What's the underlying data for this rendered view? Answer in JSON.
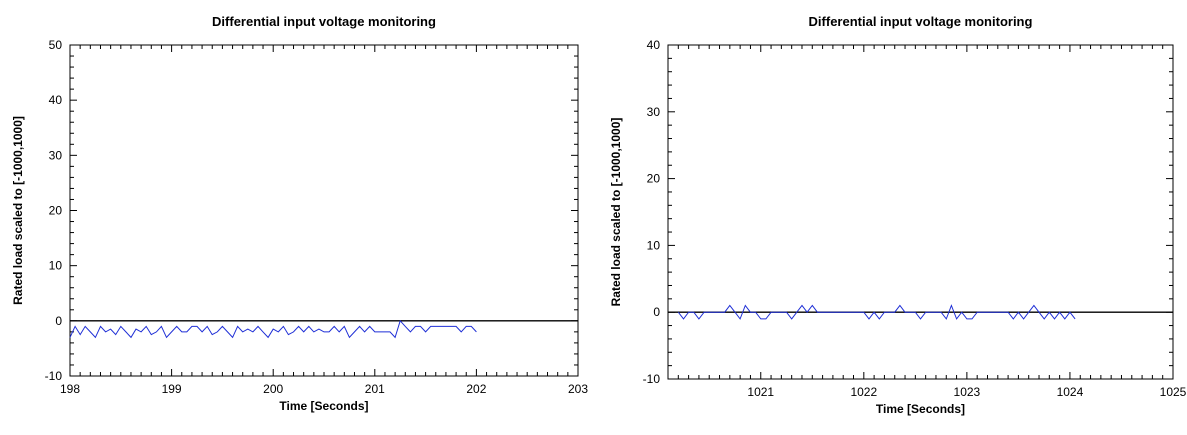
{
  "chart_data": [
    {
      "type": "line",
      "title": "Differential input voltage monitoring",
      "xlabel": "Time [Seconds]",
      "ylabel": "Rated load scaled to [-1000,1000]",
      "xlim": [
        198,
        203
      ],
      "ylim": [
        -10,
        50
      ],
      "xticks": [
        "198",
        "199",
        "200",
        "201",
        "202",
        "203"
      ],
      "yticks": [
        "-10",
        "0",
        "10",
        "20",
        "30",
        "40",
        "50"
      ],
      "zero_line": 0,
      "series_color": "#1f2fd6",
      "series": [
        {
          "x": [
            198.0,
            198.05,
            198.1,
            198.15,
            198.2,
            198.25,
            198.3,
            198.35,
            198.4,
            198.45,
            198.5,
            198.55,
            198.6,
            198.65,
            198.7,
            198.75,
            198.8,
            198.85,
            198.9,
            198.95,
            199.0,
            199.05,
            199.1,
            199.15,
            199.2,
            199.25,
            199.3,
            199.35,
            199.4,
            199.45,
            199.5,
            199.55,
            199.6,
            199.65,
            199.7,
            199.75,
            199.8,
            199.85,
            199.9,
            199.95,
            200.0,
            200.05,
            200.1,
            200.15,
            200.2,
            200.25,
            200.3,
            200.35,
            200.4,
            200.45,
            200.5,
            200.55,
            200.6,
            200.65,
            200.7,
            200.75,
            200.8,
            200.85,
            200.9,
            200.95,
            201.0,
            201.05,
            201.1,
            201.15,
            201.2,
            201.25,
            201.3,
            201.35,
            201.4,
            201.45,
            201.5,
            201.55,
            201.6,
            201.65,
            201.7,
            201.75,
            201.8,
            201.85,
            201.9,
            201.95,
            202.0
          ],
          "y": [
            -3,
            -1,
            -2.5,
            -1,
            -2,
            -3,
            -1,
            -2,
            -1.5,
            -2.5,
            -1,
            -2,
            -3,
            -1.5,
            -2,
            -1,
            -2.5,
            -2,
            -1,
            -3,
            -2,
            -1,
            -2,
            -2,
            -1,
            -1,
            -2,
            -1,
            -2.5,
            -2,
            -1,
            -2,
            -3,
            -1,
            -2,
            -1.5,
            -2,
            -1,
            -2,
            -3,
            -1.5,
            -2,
            -1,
            -2.5,
            -2,
            -1,
            -2,
            -1,
            -2,
            -1.5,
            -2,
            -2,
            -1,
            -2,
            -1,
            -3,
            -2,
            -1,
            -2,
            -1,
            -2,
            -2,
            -2,
            -2,
            -3,
            0,
            -1,
            -2,
            -1,
            -1,
            -2,
            -1,
            -1,
            -1,
            -1,
            -1,
            -1,
            -2,
            -1,
            -1,
            -2
          ]
        }
      ]
    },
    {
      "type": "line",
      "title": "Differential input voltage monitoring",
      "xlabel": "Time [Seconds]",
      "ylabel": "Rated load scaled to [-1000,1000]",
      "xlim": [
        1020.1,
        1025
      ],
      "ylim": [
        -10,
        40
      ],
      "xticks": [
        "1021",
        "1022",
        "1023",
        "1024",
        "1025"
      ],
      "yticks": [
        "-10",
        "0",
        "10",
        "20",
        "30",
        "40"
      ],
      "zero_line": 0,
      "series_color": "#1f2fd6",
      "series": [
        {
          "x": [
            1020.2,
            1020.25,
            1020.3,
            1020.35,
            1020.4,
            1020.45,
            1020.5,
            1020.55,
            1020.6,
            1020.65,
            1020.7,
            1020.75,
            1020.8,
            1020.85,
            1020.9,
            1020.95,
            1021.0,
            1021.05,
            1021.1,
            1021.15,
            1021.2,
            1021.25,
            1021.3,
            1021.35,
            1021.4,
            1021.45,
            1021.5,
            1021.55,
            1021.6,
            1021.65,
            1021.7,
            1021.75,
            1021.8,
            1021.85,
            1021.9,
            1021.95,
            1022.0,
            1022.05,
            1022.1,
            1022.15,
            1022.2,
            1022.25,
            1022.3,
            1022.35,
            1022.4,
            1022.45,
            1022.5,
            1022.55,
            1022.6,
            1022.65,
            1022.7,
            1022.75,
            1022.8,
            1022.85,
            1022.9,
            1022.95,
            1023.0,
            1023.05,
            1023.1,
            1023.15,
            1023.2,
            1023.25,
            1023.3,
            1023.35,
            1023.4,
            1023.45,
            1023.5,
            1023.55,
            1023.6,
            1023.65,
            1023.7,
            1023.75,
            1023.8,
            1023.85,
            1023.9,
            1023.95,
            1024.0,
            1024.05
          ],
          "y": [
            0,
            -1,
            0,
            0,
            -1,
            0,
            0,
            0,
            0,
            0,
            1,
            0,
            -1,
            1,
            0,
            0,
            -1,
            -1,
            0,
            0,
            0,
            0,
            -1,
            0,
            1,
            0,
            1,
            0,
            0,
            0,
            0,
            0,
            0,
            0,
            0,
            0,
            0,
            -1,
            0,
            -1,
            0,
            0,
            0,
            1,
            0,
            0,
            0,
            -1,
            0,
            0,
            0,
            0,
            -1,
            1,
            -1,
            0,
            -1,
            -1,
            0,
            0,
            0,
            0,
            0,
            0,
            0,
            -1,
            0,
            -1,
            0,
            1,
            0,
            -1,
            0,
            -1,
            0,
            -1,
            0,
            -1
          ]
        }
      ]
    }
  ]
}
